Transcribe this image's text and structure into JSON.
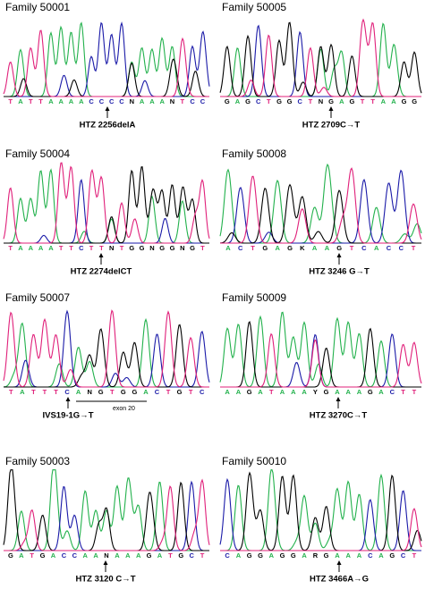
{
  "panels": [
    {
      "title": "Family 50001",
      "sequence": "TATTAAAACCCCNAAANTCC",
      "label": "HTZ 2256delA"
    },
    {
      "title": "Family 50005",
      "sequence": "GAGCTGGCTNGAGTTAAGG",
      "label": "HTZ 2709C→T"
    },
    {
      "title": "Family 50004",
      "sequence": "TAAAATTCTTNTGGNGGNGT",
      "label": "HTZ 2274delCT"
    },
    {
      "title": "Family 50008",
      "sequence": "ACTGAGKAAGTCACCT",
      "label": "HTZ 3246 G→T"
    },
    {
      "title": "Family 50007",
      "sequence": "TATTTCANGTGGACTGTC",
      "label": "IVS19-1G→T",
      "note": "exon 20"
    },
    {
      "title": "Family 50009",
      "sequence": "AAGATAAAYGAAAGACTT",
      "label": "HTZ 3270C→T"
    },
    {
      "title": "Family 50003",
      "sequence": "GATGACCAANAAAGATGCT",
      "label": "HTZ 3120 C→T"
    },
    {
      "title": "Family 50010",
      "sequence": "CAGGAGGARGAAACAGCT",
      "label": "HTZ 3466A→G"
    }
  ]
}
